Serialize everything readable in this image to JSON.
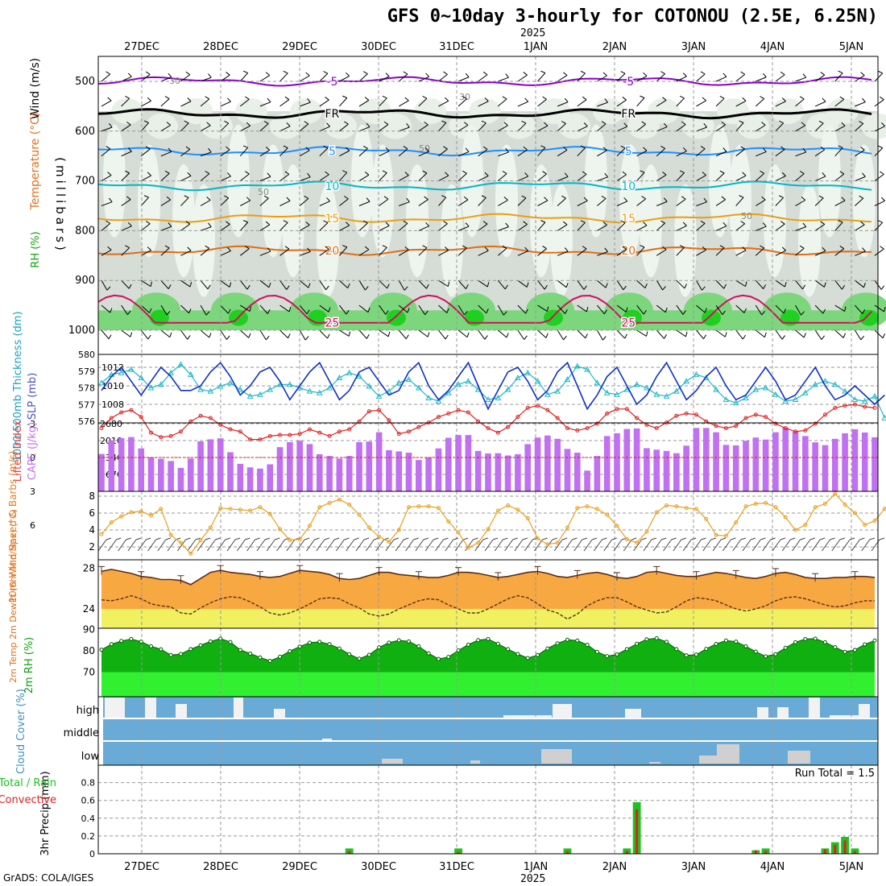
{
  "title": "GFS 0~10day 3-hourly for COTONOU (2.5E, 6.25N)",
  "year_label": "2025",
  "credit": "GrADS: COLA/IGES",
  "date_labels": [
    "27DEC",
    "28DEC",
    "29DEC",
    "30DEC",
    "31DEC",
    "1JAN",
    "2JAN",
    "3JAN",
    "4JAN",
    "5JAN"
  ],
  "run_total_label": "Run Total = 1.5",
  "chart_data": [
    {
      "type": "heatmap",
      "panel": "upper-air",
      "ylabel_wind": "Wind (m/s)",
      "ylabel_temp": "Temperature (°C)",
      "ylabel_rh": "RH (%)",
      "ylabel_units": "(millibars)",
      "yticks": [
        500,
        600,
        700,
        800,
        900,
        1000
      ],
      "ylim": [
        1000,
        450
      ],
      "temperature_contours": [
        {
          "label": "-5",
          "color": "#8b00c8",
          "level_mb": 500
        },
        {
          "label": "FR",
          "color": "#000000",
          "level_mb": 565
        },
        {
          "label": "5",
          "color": "#1e90ff",
          "level_mb": 640
        },
        {
          "label": "10",
          "color": "#00b8c8",
          "level_mb": 710
        },
        {
          "label": "15",
          "color": "#e8a010",
          "level_mb": 775
        },
        {
          "label": "20",
          "color": "#e06e14",
          "level_mb": 840
        },
        {
          "label": "25",
          "color": "#d01060",
          "level_mb": 985
        }
      ],
      "rh_contour_labels": [
        "30",
        "50"
      ]
    },
    {
      "type": "line",
      "panel": "sea-level-pressure-thickness",
      "ylabel_left": "1000-500mb Thickness (dm)",
      "ylabel_right": "SLP (mb)",
      "left_ticks": [
        576,
        577,
        578,
        579,
        580
      ],
      "right_ticks": [
        1008,
        1010,
        1012
      ],
      "series": [
        {
          "name": "SLP (mb)",
          "color": "#1030c8",
          "values": [
            1009.5,
            1011,
            1012,
            1010.5,
            1009,
            1010.5,
            1012,
            1011,
            1009.5,
            1009.5,
            1010,
            1011.5,
            1012.5,
            1011,
            1009,
            1010,
            1011.5,
            1012,
            1010.5,
            1008.5,
            1010,
            1011.5,
            1012.5,
            1010.5,
            1008.5,
            1009.5,
            1011.5,
            1012,
            1010.5,
            1009,
            1009.5,
            1011.5,
            1012.5,
            1010,
            1008.5,
            1009.5,
            1011,
            1012.5,
            1010,
            1007.5,
            1009.5,
            1011.5,
            1012,
            1010.5,
            1008.5,
            1009.5,
            1011.5,
            1012.5,
            1010,
            1007.5,
            1009,
            1011,
            1012,
            1010,
            1008,
            1009,
            1011,
            1012.5,
            1010.5,
            1008.5,
            1009.5,
            1011,
            1012,
            1010,
            1008.5,
            1009,
            1010.5,
            1012,
            1010.5,
            1008.5,
            1009,
            1010.5,
            1012,
            1010,
            1008.5,
            1009,
            1010,
            1009,
            1008,
            1009
          ]
        },
        {
          "name": "Thickness (dm)",
          "color": "#20b8c8",
          "values": [
            578.3,
            578.8,
            578.9,
            579.1,
            578.6,
            578.0,
            578.2,
            578.9,
            579.4,
            578.8,
            577.9,
            577.8,
            578.1,
            578.3,
            577.9,
            577.5,
            577.6,
            577.9,
            578.2,
            578.2,
            578.0,
            577.8,
            577.7,
            578.0,
            578.6,
            578.9,
            578.7,
            578.1,
            577.5,
            577.8,
            578.3,
            578.5,
            578.0,
            577.4,
            577.2,
            577.7,
            578.2,
            578.4,
            577.9,
            577.3,
            577.4,
            577.9,
            578.6,
            578.9,
            578.4,
            577.6,
            577.8,
            578.5,
            579.3,
            579.1,
            578.3,
            577.7,
            577.6,
            577.9,
            578.2,
            578.0,
            577.6,
            577.5,
            577.8,
            578.4,
            578.8,
            578.6,
            577.9,
            577.3,
            577.1,
            577.4,
            577.9,
            578.0,
            577.6,
            577.2,
            577.3,
            577.7,
            578.2,
            578.4,
            578.2,
            577.8,
            577.3,
            577.2,
            577.5,
            576.2
          ]
        }
      ]
    },
    {
      "type": "bar",
      "panel": "cape-lifted-index",
      "ylabel_left": "Lifted Index",
      "ylabel_right": "CAPE (J/kg)",
      "left_ticks": [
        -3,
        0,
        3,
        6
      ],
      "right_ticks": [
        670,
        1340,
        2010,
        2680
      ],
      "series": [
        {
          "name": "CAPE (J/kg)",
          "color": "#c070f0",
          "values": [
            1480,
            2020,
            2110,
            2150,
            1700,
            1350,
            1290,
            1200,
            930,
            1300,
            1980,
            2060,
            2100,
            1550,
            1090,
            950,
            900,
            1070,
            1750,
            1950,
            2000,
            1870,
            1470,
            1400,
            1300,
            1400,
            1950,
            1970,
            2340,
            1630,
            1580,
            1530,
            1240,
            1340,
            1700,
            2120,
            2230,
            2230,
            1600,
            1500,
            1510,
            1420,
            1470,
            1870,
            2130,
            2210,
            2080,
            1680,
            1530,
            820,
            1400,
            2190,
            2300,
            2470,
            2490,
            1710,
            1650,
            1600,
            1510,
            1810,
            2510,
            2510,
            2340,
            1840,
            1820,
            2000,
            2130,
            2050,
            2340,
            2520,
            2360,
            2190,
            1940,
            1830,
            2080,
            2300,
            2460,
            2330,
            2140
          ]
        },
        {
          "name": "Lifted Index",
          "color": "#e02020",
          "values": [
            -2.6,
            -3.5,
            -4.0,
            -4.2,
            -3.6,
            -2.2,
            -1.8,
            -1.9,
            -2.3,
            -3.2,
            -3.7,
            -3.5,
            -2.9,
            -2.5,
            -2.3,
            -1.6,
            -1.6,
            -1.9,
            -2.0,
            -2.0,
            -2.1,
            -2.5,
            -2.2,
            -1.9,
            -2.3,
            -2.5,
            -3.2,
            -4.1,
            -4.2,
            -3.3,
            -2.1,
            -2.3,
            -2.7,
            -3.1,
            -3.6,
            -3.9,
            -4.2,
            -4.0,
            -3.2,
            -2.6,
            -2.2,
            -2.7,
            -3.6,
            -4.4,
            -4.6,
            -4.2,
            -3.5,
            -2.6,
            -2.4,
            -2.6,
            -3.0,
            -3.9,
            -4.3,
            -4.3,
            -3.5,
            -2.9,
            -2.6,
            -3.1,
            -3.7,
            -3.9,
            -3.8,
            -3.2,
            -2.8,
            -2.6,
            -2.8,
            -3.5,
            -3.8,
            -3.6,
            -3.0,
            -2.6,
            -2.3,
            -2.4,
            -3.0,
            -3.8,
            -4.4,
            -4.6,
            -4.7,
            -4.5,
            -4.4
          ]
        }
      ]
    },
    {
      "type": "line",
      "panel": "10m-wind",
      "ylabel": "10m Wind Speed & Barbs (m/s)",
      "yticks": [
        2,
        4,
        6,
        8
      ],
      "series": [
        {
          "name": "Speed",
          "color": "#e8a020",
          "values": [
            3.5,
            4.9,
            5.6,
            6.1,
            6.2,
            5.7,
            6.5,
            3.4,
            2.5,
            1.2,
            2.8,
            4.3,
            6.6,
            6.5,
            6.4,
            6.3,
            6.7,
            5.9,
            4.1,
            2.8,
            2.9,
            4.5,
            6.7,
            7.2,
            7.6,
            7.0,
            5.8,
            4.3,
            3.2,
            2.6,
            4.0,
            6.7,
            6.8,
            6.8,
            6.6,
            5.0,
            3.7,
            1.9,
            2.5,
            4.1,
            6.3,
            6.9,
            6.4,
            5.4,
            3.0,
            2.3,
            2.5,
            4.3,
            6.6,
            6.8,
            6.5,
            5.8,
            4.5,
            2.9,
            2.5,
            3.8,
            6.1,
            6.9,
            6.8,
            6.6,
            6.5,
            5.3,
            3.4,
            3.3,
            4.9,
            6.8,
            7.1,
            7.2,
            6.7,
            5.5,
            4.0,
            4.6,
            6.7,
            7.1,
            8.3,
            7.0,
            6.0,
            4.6,
            5.1,
            6.5,
            7.8,
            8.4,
            7.7
          ]
        }
      ]
    },
    {
      "type": "area",
      "panel": "2m-temperature",
      "ylabel": "2m Temp 2m DewPt (6hr Min/Max) (°C)",
      "yticks": [
        24,
        28
      ],
      "series": [
        {
          "name": "2m Temp",
          "color": "#f8a840",
          "values": [
            27.7,
            27.9,
            27.7,
            27.5,
            27.2,
            27.1,
            26.9,
            26.9,
            26.8,
            26.4,
            27.0,
            27.6,
            27.8,
            27.6,
            27.5,
            27.4,
            27.2,
            27.1,
            27.2,
            27.5,
            27.8,
            27.7,
            27.6,
            27.4,
            27.0,
            26.9,
            27.0,
            27.3,
            27.6,
            27.6,
            27.4,
            27.3,
            27.2,
            27.1,
            27.1,
            27.3,
            27.6,
            27.6,
            27.5,
            27.3,
            27.1,
            27.2,
            27.4,
            27.6,
            27.7,
            27.5,
            27.2,
            27.1,
            27.3,
            27.5,
            27.6,
            27.4,
            27.1,
            27.0,
            27.2,
            27.6,
            27.7,
            27.5,
            27.3,
            27.2,
            27.2,
            27.4,
            27.6,
            27.5,
            27.3,
            27.1,
            27.0,
            27.2,
            27.5,
            27.6,
            27.4,
            27.1,
            27.0,
            27.0,
            27.1,
            27.1,
            27.2,
            27.2,
            27.1
          ]
        },
        {
          "name": "2m DewPt",
          "color": "#583020",
          "values": [
            24.9,
            24.8,
            25.0,
            25.3,
            25.0,
            24.5,
            24.3,
            24.2,
            23.6,
            23.5,
            24.1,
            24.6,
            25.0,
            25.2,
            25.1,
            24.7,
            24.2,
            23.6,
            23.4,
            23.6,
            24.0,
            24.5,
            25.0,
            25.1,
            25.0,
            24.5,
            24.1,
            23.5,
            23.3,
            23.5,
            24.0,
            24.4,
            24.8,
            25.0,
            24.9,
            24.4,
            24.0,
            23.6,
            23.6,
            24.0,
            24.5,
            25.0,
            25.3,
            25.1,
            24.5,
            23.9,
            23.6,
            23.0,
            23.5,
            24.3,
            24.8,
            25.1,
            25.1,
            24.7,
            24.2,
            23.9,
            23.6,
            23.7,
            24.2,
            24.8,
            25.1,
            25.0,
            24.8,
            24.4,
            24.0,
            23.8,
            24.0,
            24.3,
            24.8,
            25.1,
            25.2,
            25.0,
            24.7,
            24.4,
            24.2,
            24.3,
            24.6,
            24.8,
            24.8
          ]
        }
      ]
    },
    {
      "type": "area",
      "panel": "2m-rh",
      "ylabel": "2m RH (%)",
      "yticks": [
        70,
        80,
        90
      ],
      "series": [
        {
          "name": "2m RH",
          "color": "#10c010",
          "values": [
            80.5,
            83.1,
            84.6,
            85.5,
            84.3,
            82.1,
            80.7,
            78.0,
            78.5,
            80.8,
            82.6,
            84.4,
            85.7,
            84.1,
            80.4,
            78.7,
            76.9,
            75.3,
            77.2,
            79.8,
            82.0,
            83.8,
            84.2,
            83.1,
            81.1,
            78.4,
            76.3,
            78.1,
            81.6,
            83.8,
            84.9,
            84.4,
            82.1,
            78.8,
            76.2,
            77.1,
            80.2,
            82.9,
            85.0,
            85.5,
            83.3,
            80.8,
            78.5,
            76.6,
            78.0,
            81.1,
            83.5,
            85.2,
            84.8,
            82.8,
            79.5,
            77.5,
            78.3,
            80.8,
            83.3,
            85.4,
            85.9,
            84.2,
            80.8,
            77.9,
            78.2,
            80.9,
            83.2,
            84.8,
            84.3,
            82.1,
            79.6,
            77.4,
            78.4,
            81.4,
            84.0,
            85.5,
            85.7,
            84.0,
            81.7,
            79.5,
            80.4,
            83.0,
            84.8
          ]
        }
      ]
    },
    {
      "type": "bar",
      "panel": "cloud-cover",
      "ylabel": "Cloud Cover (%)",
      "categories": [
        "high",
        "middle",
        "low"
      ]
    },
    {
      "type": "bar",
      "panel": "precipitation",
      "ylabel": "3hr Precip (mm)",
      "legend": [
        "Total / Rain",
        "Convective"
      ],
      "yticks": [
        0,
        0.2,
        0.4,
        0.6,
        0.8
      ],
      "ylim": [
        0,
        0.95
      ],
      "series": [
        {
          "name": "Total / Rain",
          "color": "#20c020",
          "values": {
            "25": 0.06,
            "36": 0.06,
            "47": 0.06,
            "53": 0.06,
            "54": 0.58,
            "66": 0.04,
            "67": 0.06,
            "73": 0.06,
            "74": 0.13,
            "75": 0.19,
            "76": 0.06,
            "84": 0.06,
            "86": 0.06
          }
        },
        {
          "name": "Convective",
          "color": "#e02020",
          "values": {
            "25": 0.03,
            "36": 0.02,
            "47": 0.03,
            "53": 0.03,
            "54": 0.5,
            "66": 0.04,
            "67": 0.03,
            "73": 0.05,
            "74": 0.1,
            "75": 0.15,
            "76": 0.03,
            "84": 0.03,
            "85": 0.06,
            "86": 0.04
          }
        }
      ]
    }
  ]
}
